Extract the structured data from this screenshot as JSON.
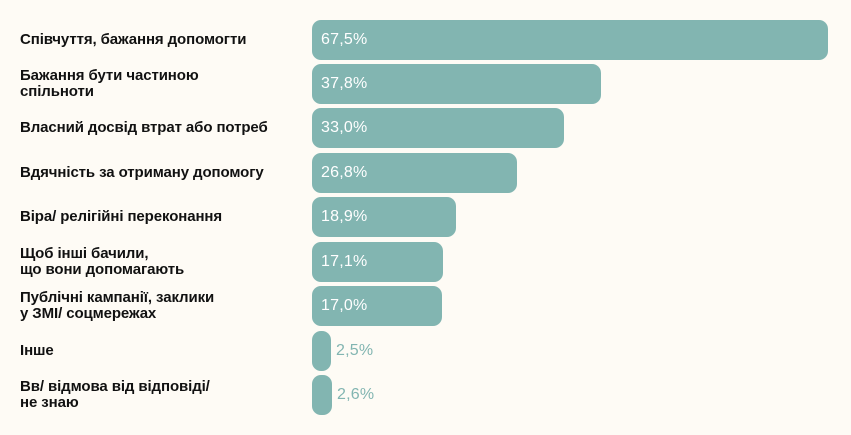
{
  "colors": {
    "background": "#FEFBF5",
    "bar": "#82B5B1",
    "label": "#111111",
    "value_inside": "#FFFFFF",
    "value_outside": "#82B5B1"
  },
  "chart_data": {
    "type": "bar",
    "orientation": "horizontal",
    "title": "",
    "xlabel": "",
    "ylabel": "",
    "unit": "%",
    "grid": false,
    "legend": null,
    "categories": [
      "Співчуття, бажання допомогти",
      "Бажання бути частиною спільноти",
      "Власний досвід втрат або потреб",
      "Вдячність за отриману допомогу",
      "Віра/ релігійні переконання",
      "Щоб інші бачили, що вони допомагають",
      "Публічні кампанії, заклики у ЗМІ/ соцмережах",
      "Інше",
      "Вв/ відмова від відповіді/ не знаю"
    ],
    "values": [
      67.5,
      37.8,
      33.0,
      26.8,
      18.9,
      17.1,
      17.0,
      2.5,
      2.6
    ],
    "value_labels": [
      "67,5%",
      "37,8%",
      "33,0%",
      "26,8%",
      "18,9%",
      "17,1%",
      "17,0%",
      "2,5%",
      "2,6%"
    ]
  },
  "rows": [
    {
      "label_lines": [
        "Співчуття, бажання допомогти"
      ],
      "value_text": "67,5%"
    },
    {
      "label_lines": [
        "Бажання бути частиною",
        "спільноти"
      ],
      "value_text": "37,8%"
    },
    {
      "label_lines": [
        "Власний досвід втрат або потреб"
      ],
      "value_text": "33,0%"
    },
    {
      "label_lines": [
        "Вдячність за отриману допомогу"
      ],
      "value_text": "26,8%"
    },
    {
      "label_lines": [
        "Віра/ релігійні переконання"
      ],
      "value_text": "18,9%"
    },
    {
      "label_lines": [
        "Щоб інші бачили,",
        "що вони допомагають"
      ],
      "value_text": "17,1%"
    },
    {
      "label_lines": [
        "Публічні кампанії, заклики",
        "у ЗМІ/ соцмережах"
      ],
      "value_text": "17,0%"
    },
    {
      "label_lines": [
        "Інше"
      ],
      "value_text": "2,5%"
    },
    {
      "label_lines": [
        "Вв/ відмова від відповіді/",
        "не знаю"
      ],
      "value_text": "2,6%"
    }
  ]
}
